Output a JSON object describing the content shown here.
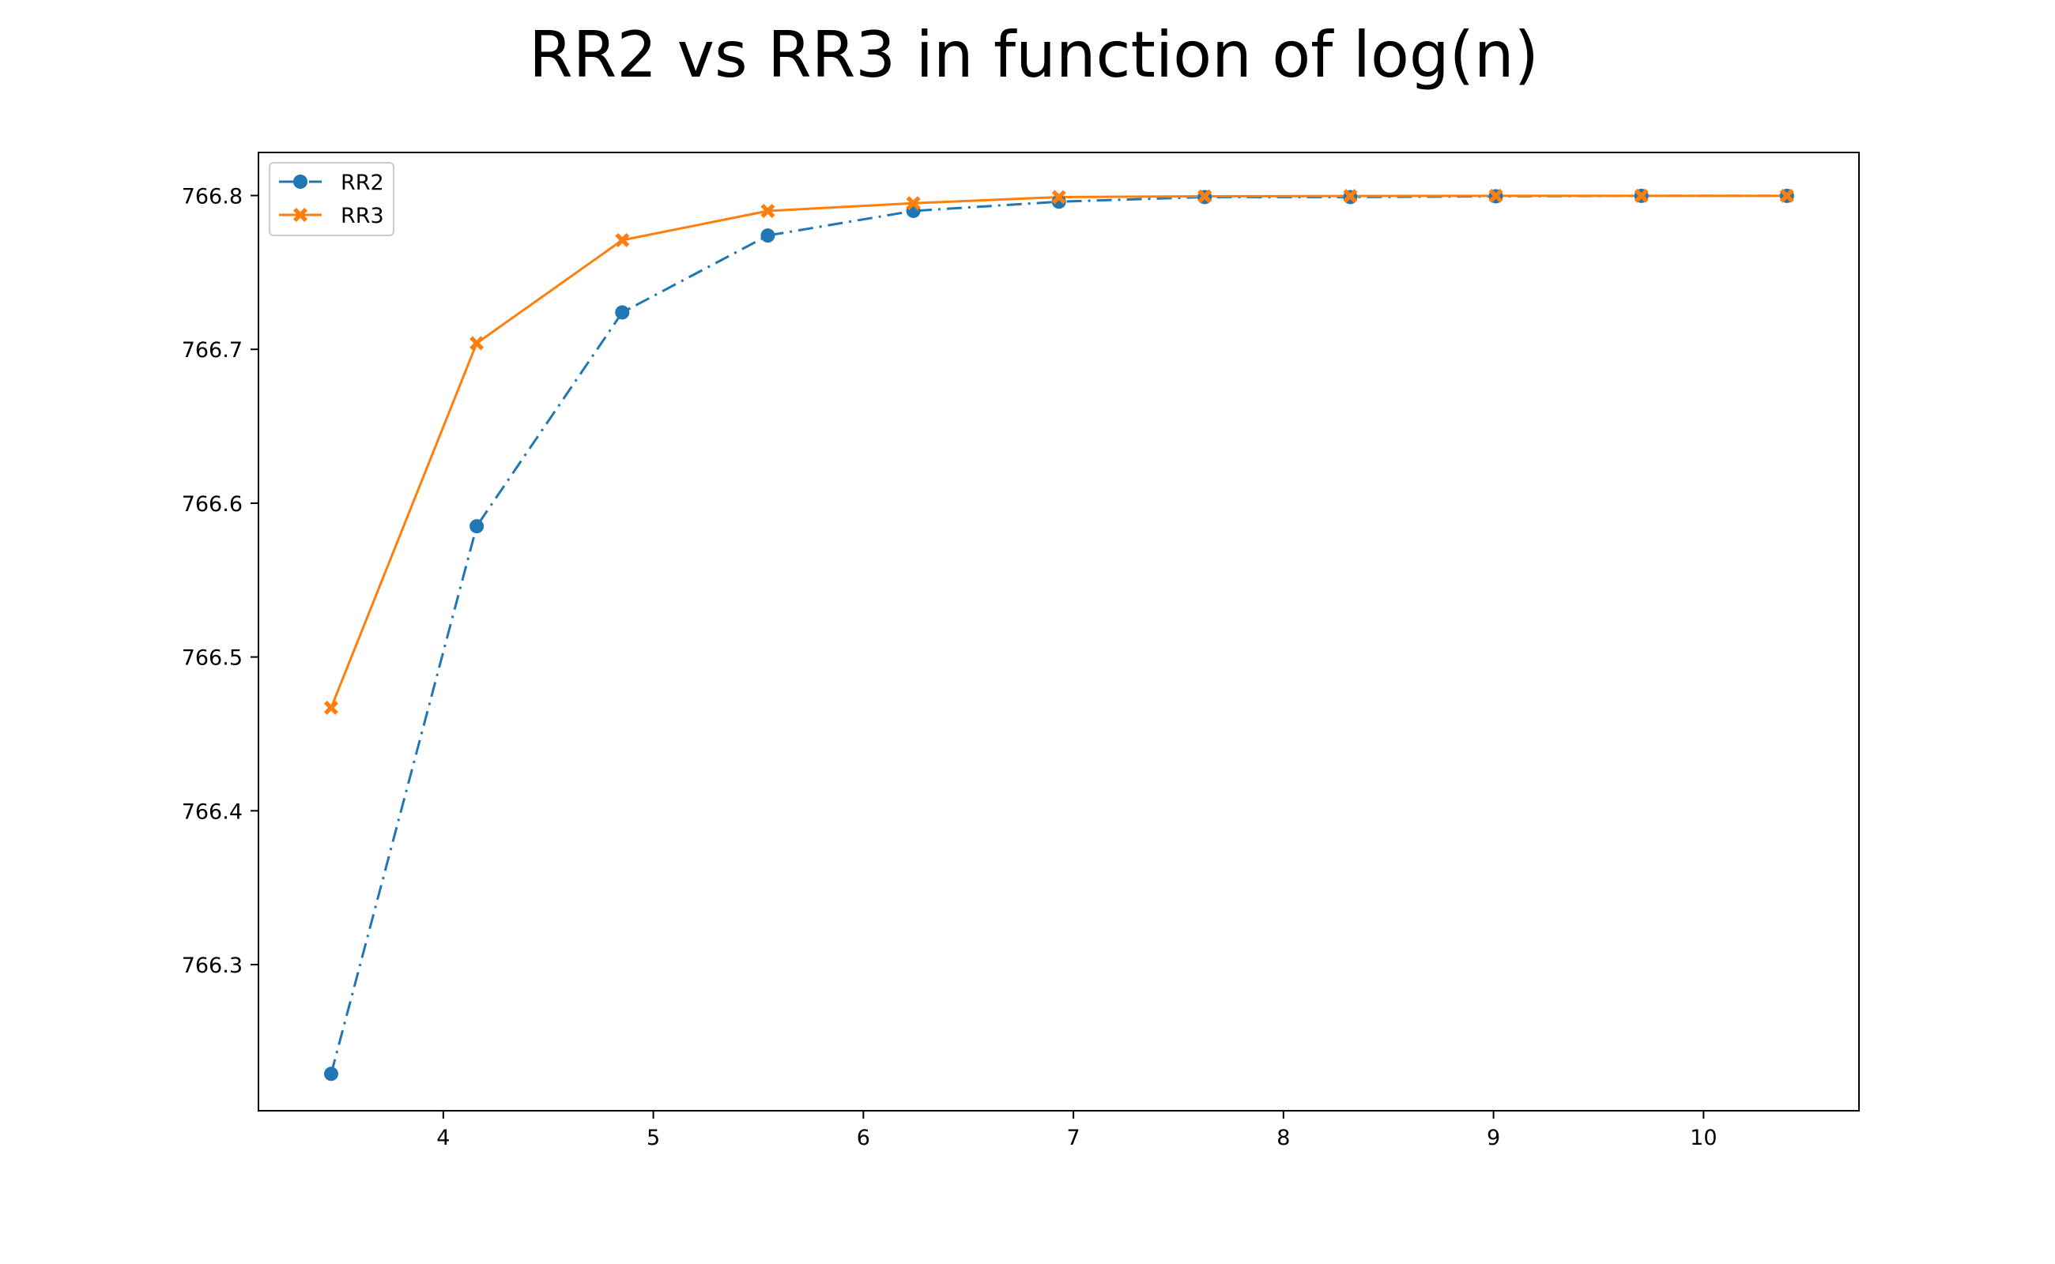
{
  "chart_data": {
    "type": "line",
    "title": "RR2 vs RR3 in function of log(n)",
    "xlabel": "",
    "ylabel": "",
    "xlim": [
      3.12,
      10.74
    ],
    "ylim": [
      766.205,
      766.828
    ],
    "x_ticks": [
      4,
      5,
      6,
      7,
      8,
      9,
      10
    ],
    "y_ticks": [
      766.3,
      766.4,
      766.5,
      766.6,
      766.7,
      766.8
    ],
    "x_tick_labels": [
      "4",
      "5",
      "6",
      "7",
      "8",
      "9",
      "10"
    ],
    "y_tick_labels": [
      "766.3",
      "766.4",
      "766.5",
      "766.6",
      "766.7",
      "766.8"
    ],
    "x": [
      3.466,
      4.159,
      4.852,
      5.545,
      6.238,
      6.931,
      7.625,
      8.318,
      9.011,
      9.704,
      10.397
    ],
    "series": [
      {
        "name": "RR2",
        "color": "#1f77b4",
        "linestyle": "dashdot",
        "marker": "circle",
        "values": [
          766.229,
          766.585,
          766.724,
          766.774,
          766.79,
          766.796,
          766.799,
          766.799,
          766.7995,
          766.7998,
          766.7998
        ]
      },
      {
        "name": "RR3",
        "color": "#ff7f0e",
        "linestyle": "solid",
        "marker": "x-filled",
        "values": [
          766.467,
          766.704,
          766.771,
          766.79,
          766.795,
          766.799,
          766.7995,
          766.7997,
          766.7998,
          766.7998,
          766.7998
        ]
      }
    ],
    "grid": false,
    "legend_position": "top-left"
  }
}
